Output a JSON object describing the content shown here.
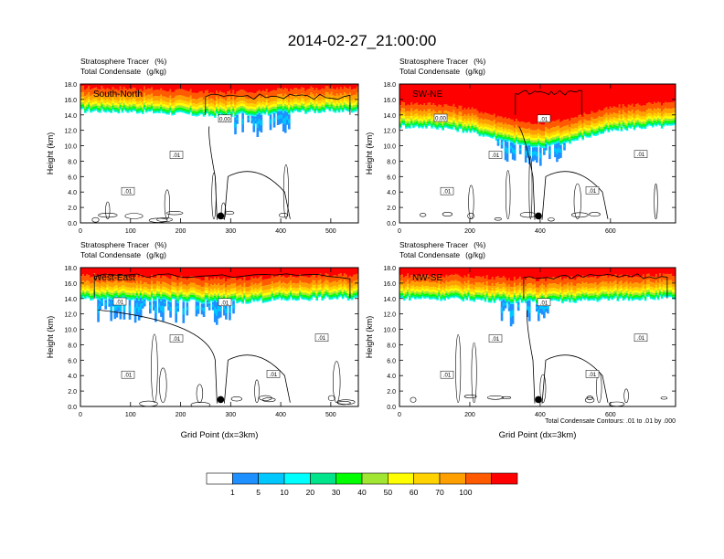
{
  "title": "2014-02-27_21:00:00",
  "panels": [
    {
      "label": "South-North",
      "var1": "Stratosphere Tracer",
      "var1_unit": "(%)",
      "var2": "Total Condensate",
      "var2_unit": "(g/kg)",
      "ylabel": "Height (km)",
      "xlabel": "",
      "xticks": [
        "0",
        "100",
        "200",
        "300",
        "400",
        "500"
      ],
      "xmax": 555,
      "yticks": [
        "0.0",
        "2.0",
        "4.0",
        "6.0",
        "8.0",
        "10.0",
        "12.0",
        "14.0",
        "16.0",
        "18.0"
      ],
      "contour_labels": [
        ".01",
        ".01",
        "0.00"
      ],
      "marker_x": 280
    },
    {
      "label": "SW-NE",
      "var1": "Stratosphere Tracer",
      "var1_unit": "(%)",
      "var2": "Total Condensate",
      "var2_unit": "(g/kg)",
      "ylabel": "Height (km)",
      "xlabel": "",
      "xticks": [
        "0",
        "200",
        "400",
        "600"
      ],
      "xmax": 785,
      "yticks": [
        "0.0",
        "2.0",
        "4.0",
        "6.0",
        "8.0",
        "10.0",
        "12.0",
        "14.0",
        "16.0",
        "18.0"
      ],
      "contour_labels": [
        ".01",
        ".01",
        ".01",
        ".01",
        ".01",
        "0.00"
      ],
      "marker_x": 395
    },
    {
      "label": "West-East",
      "var1": "Stratosphere Tracer",
      "var1_unit": "(%)",
      "var2": "Total Condensate",
      "var2_unit": "(g/kg)",
      "ylabel": "Height (km)",
      "xlabel": "Grid Point (dx=3km)",
      "xticks": [
        "0",
        "100",
        "200",
        "300",
        "400",
        "500"
      ],
      "xmax": 555,
      "yticks": [
        "0.0",
        "2.0",
        "4.0",
        "6.0",
        "8.0",
        "10.0",
        "12.0",
        "14.0",
        "16.0",
        "18.0"
      ],
      "contour_labels": [
        ".01",
        ".01",
        ".01",
        ".01",
        ".01",
        ".01"
      ],
      "marker_x": 280
    },
    {
      "label": "NW-SE",
      "var1": "Stratosphere Tracer",
      "var1_unit": "(%)",
      "var2": "Total Condensate",
      "var2_unit": "(g/kg)",
      "ylabel": "Height (km)",
      "xlabel": "Grid Point (dx=3km)",
      "xticks": [
        "0",
        "200",
        "400",
        "600"
      ],
      "xmax": 785,
      "yticks": [
        "0.0",
        "2.0",
        "4.0",
        "6.0",
        "8.0",
        "10.0",
        "12.0",
        "14.0",
        "16.0",
        "18.0"
      ],
      "contour_labels": [
        ".01",
        ".01",
        ".01",
        ".01",
        ".01"
      ],
      "marker_x": 395
    }
  ],
  "contour_note": "Total Condensate Contours: .01 to .01 by .000",
  "colorbar": {
    "labels": [
      "1",
      "5",
      "10",
      "20",
      "30",
      "40",
      "50",
      "60",
      "70",
      "100"
    ],
    "colors": [
      "#ffffff",
      "#1e90ff",
      "#00c8ff",
      "#00ffff",
      "#00e58c",
      "#00ff00",
      "#a0e632",
      "#ffff00",
      "#ffd200",
      "#ffa000",
      "#ff5a00",
      "#ff0000"
    ]
  },
  "chart_data": {
    "type": "heatmap",
    "title": "2014-02-27_21:00:00",
    "xlabel": "Grid Point (dx=3km)",
    "ylabel": "Height (km)",
    "ylim": [
      0,
      18
    ],
    "fill_variable": "Stratosphere Tracer (%)",
    "contour_variable": "Total Condensate (g/kg)",
    "contour_level": 0.01,
    "levels": [
      1,
      5,
      10,
      20,
      30,
      40,
      50,
      60,
      70,
      100
    ],
    "panels": [
      {
        "name": "South-North",
        "xlim": [
          0,
          555
        ],
        "tracer_top_km": 16.5,
        "tracer_base_km": 14.5,
        "cloud_top_km": 16.5,
        "marker_x": 280
      },
      {
        "name": "SW-NE",
        "xlim": [
          0,
          785
        ],
        "tracer_top_km": 16.5,
        "tracer_base_km": 12.5,
        "cloud_top_km": 17.0,
        "marker_x": 395
      },
      {
        "name": "West-East",
        "xlim": [
          0,
          555
        ],
        "tracer_top_km": 16.0,
        "tracer_base_km": 14.0,
        "cloud_top_km": 17.0,
        "marker_x": 280
      },
      {
        "name": "NW-SE",
        "xlim": [
          0,
          785
        ],
        "tracer_top_km": 16.5,
        "tracer_base_km": 14.0,
        "cloud_top_km": 17.0,
        "marker_x": 395
      }
    ]
  }
}
